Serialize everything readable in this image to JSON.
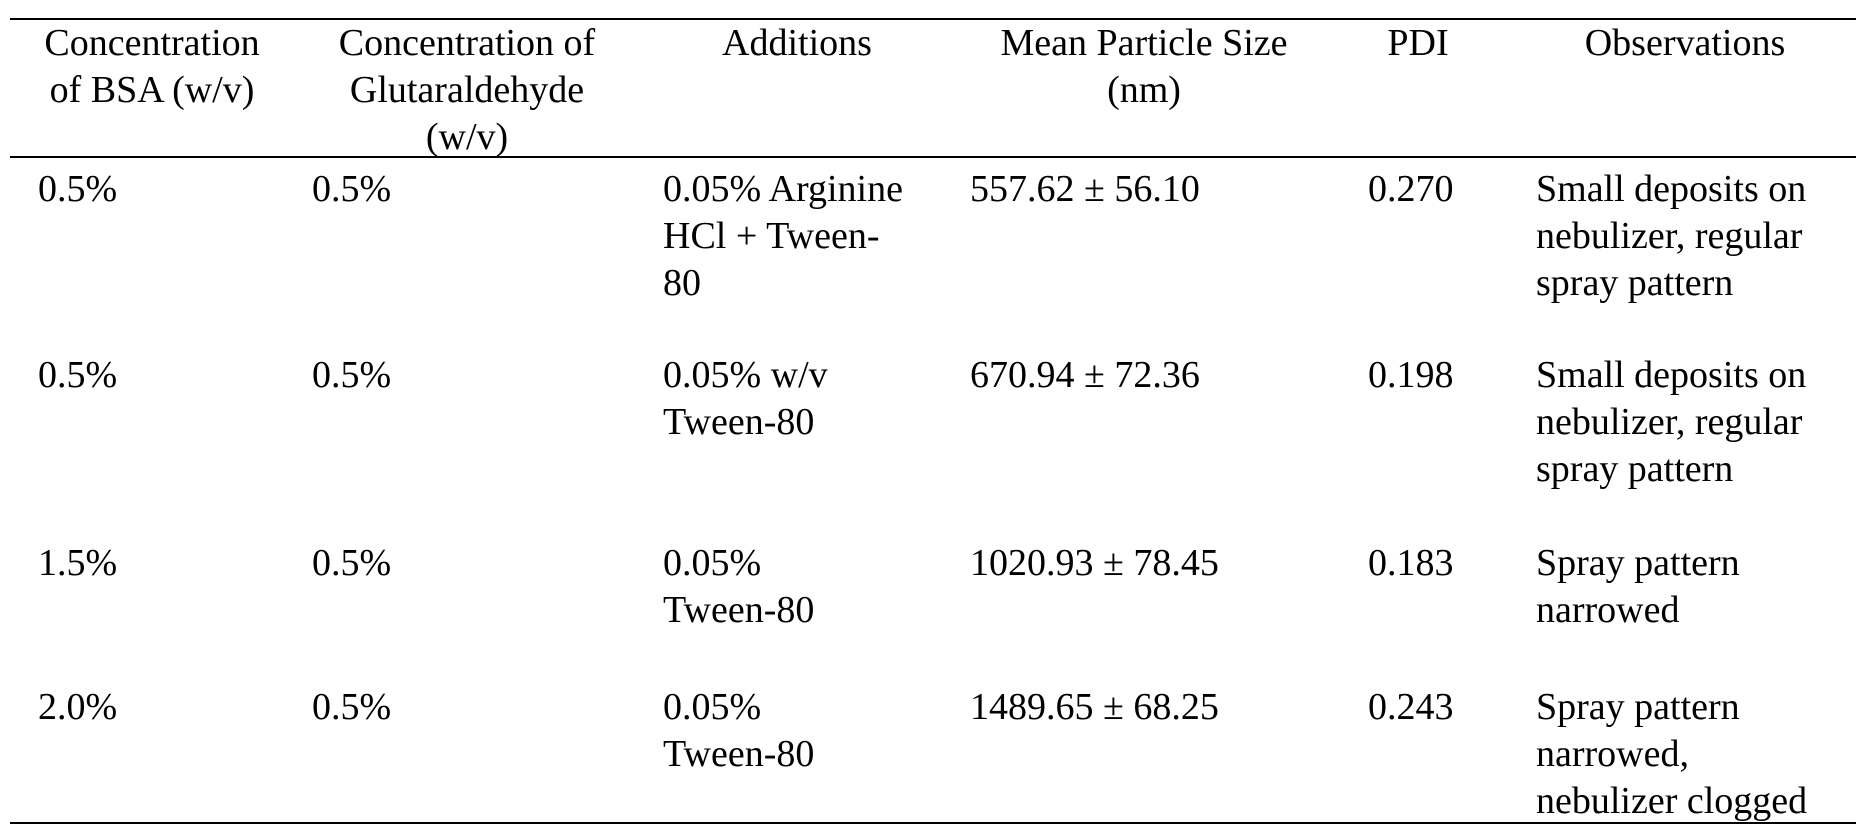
{
  "table": {
    "headers": [
      [
        "Concentration",
        "of BSA (w/v)"
      ],
      [
        "Concentration of",
        "Glutaraldehyde",
        "(w/v)"
      ],
      [
        "Additions"
      ],
      [
        "Mean Particle Size",
        "(nm)"
      ],
      [
        "PDI"
      ],
      [
        "Observations"
      ]
    ],
    "rows": [
      [
        [
          "0.5%"
        ],
        [
          "0.5%"
        ],
        [
          "0.05% Arginine",
          "HCl + Tween-",
          "80"
        ],
        [
          "557.62 ± 56.10"
        ],
        [
          "0.270"
        ],
        [
          "Small deposits on",
          "nebulizer, regular",
          "spray pattern"
        ]
      ],
      [
        [
          "0.5%"
        ],
        [
          "0.5%"
        ],
        [
          "0.05% w/v",
          "Tween-80"
        ],
        [
          "670.94 ± 72.36"
        ],
        [
          "0.198"
        ],
        [
          "Small deposits on",
          "nebulizer, regular",
          "spray pattern"
        ]
      ],
      [
        [
          "1.5%"
        ],
        [
          "0.5%"
        ],
        [
          "0.05%",
          "Tween-80"
        ],
        [
          "1020.93 ± 78.45"
        ],
        [
          "0.183"
        ],
        [
          "Spray pattern",
          "narrowed"
        ]
      ],
      [
        [
          "2.0%"
        ],
        [
          "0.5%"
        ],
        [
          "0.05%",
          "Tween-80"
        ],
        [
          "1489.65 ± 68.25"
        ],
        [
          "0.243"
        ],
        [
          "Spray pattern",
          "narrowed,",
          "nebulizer clogged"
        ]
      ]
    ]
  }
}
